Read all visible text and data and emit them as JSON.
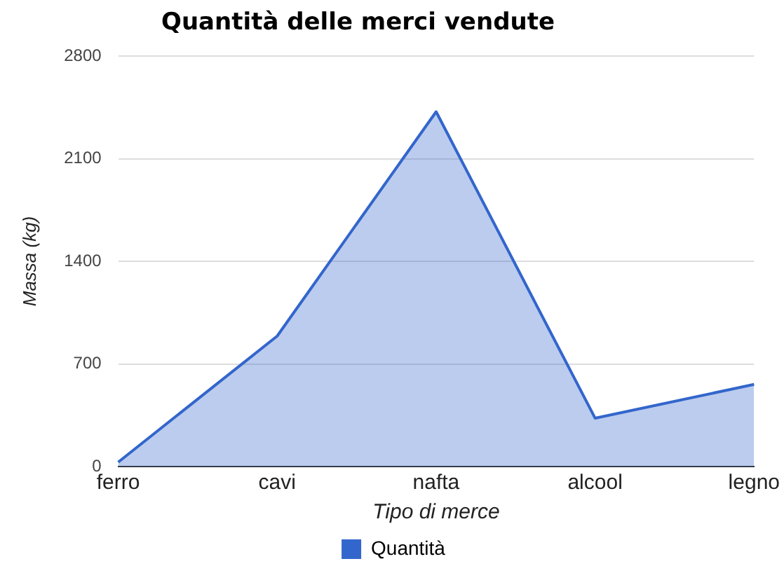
{
  "chart_data": {
    "type": "area",
    "title": "Quantità delle merci vendute",
    "xlabel": "Tipo di merce",
    "ylabel": "Massa (kg)",
    "categories": [
      "ferro",
      "cavi",
      "nafta",
      "alcool",
      "legno"
    ],
    "series": [
      {
        "name": "Quantità",
        "color": "#3366cc",
        "values": [
          30,
          890,
          2420,
          330,
          560
        ]
      }
    ],
    "ylim": [
      0,
      2800
    ],
    "yticks": [
      0,
      700,
      1400,
      2100,
      2800
    ],
    "grid": "y",
    "legend": "bottom"
  }
}
